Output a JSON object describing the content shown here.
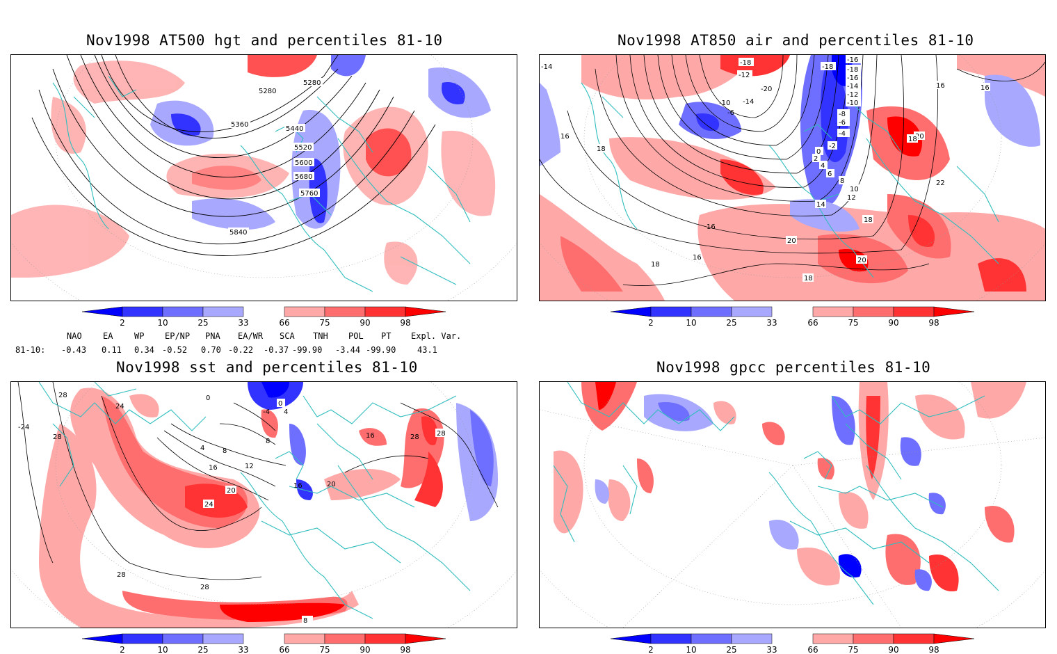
{
  "panels": [
    {
      "title": "Nov1998 AT500 hgt and percentiles 81-10",
      "contour_labels": [
        "5280",
        "5280",
        "5360",
        "5440",
        "5520",
        "5600",
        "5680",
        "5760",
        "5840"
      ]
    },
    {
      "title": "Nov1998 AT850 air and percentiles 81-10",
      "contour_labels": [
        "-14",
        "-18",
        "-12",
        "-18",
        "-16",
        "-18",
        "-16",
        "-14",
        "-12",
        "-10",
        "-20",
        "-14",
        "-10",
        "-6",
        "-8",
        "-6",
        "-4",
        "-2",
        "0",
        "2",
        "4",
        "6",
        "8",
        "10",
        "12",
        "14",
        "16",
        "16",
        "16",
        "18",
        "20",
        "22",
        "16",
        "18",
        "18",
        "20",
        "16",
        "18",
        "20",
        "18"
      ]
    },
    {
      "title": "Nov1998 sst and percentiles 81-10",
      "contour_labels": [
        "28",
        "24",
        "28",
        "-24",
        "0",
        "-4",
        "0",
        "4",
        "4",
        "8",
        "8",
        "12",
        "16",
        "20",
        "24",
        "16",
        "20",
        "16",
        "28",
        "28",
        "28",
        "28",
        "8"
      ]
    },
    {
      "title": "Nov1998 gpcc percentiles 81-10",
      "contour_labels": []
    }
  ],
  "colorbar": {
    "labels": [
      "2",
      "10",
      "25",
      "33",
      "66",
      "75",
      "90",
      "98"
    ],
    "colors": [
      "#0000ff",
      "#3333ff",
      "#6e6eff",
      "#a8a8ff",
      "#ffa8a8",
      "#ff6e6e",
      "#ff3333",
      "#ff0000"
    ]
  },
  "indices": {
    "headers": [
      "NAO",
      "EA",
      "WP",
      "EP/NP",
      "PNA",
      "EA/WR",
      "SCA",
      "TNH",
      "POL",
      "PT",
      "Expl. Var."
    ],
    "row_label": "81-10:",
    "values": [
      "-0.43",
      "0.11",
      "0.34",
      "-0.52",
      "0.70",
      "-0.22",
      "-0.37",
      "-99.90",
      "-3.44",
      "-99.90",
      "43.1"
    ]
  }
}
